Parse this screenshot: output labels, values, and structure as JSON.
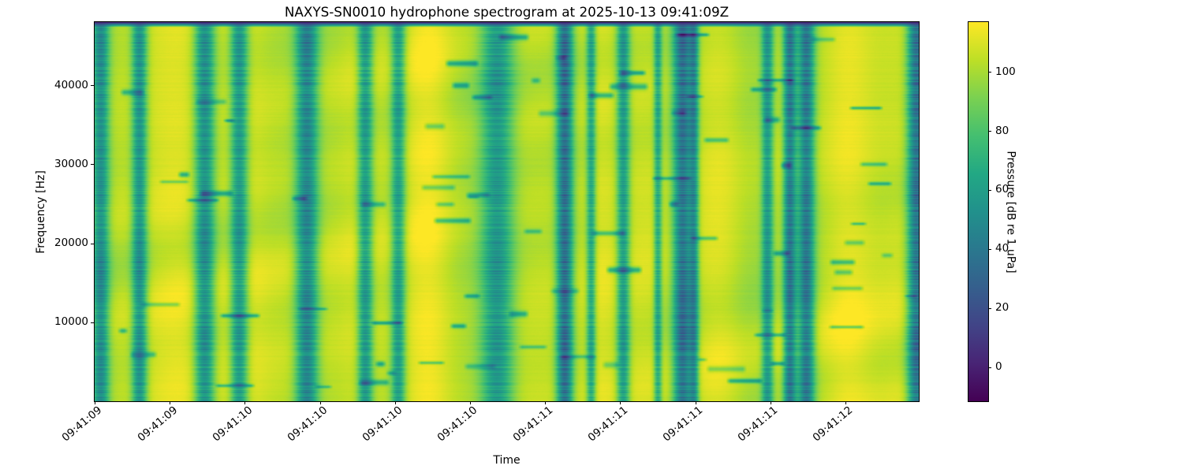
{
  "figure": {
    "title": "NAXYS-SN0010 hydrophone spectrogram at 2025-10-13 09:41:09Z",
    "background_color": "#ffffff"
  },
  "axes": {
    "xlabel": "Time",
    "ylabel": "Frequency [Hz]",
    "x_tick_labels": [
      "09:41:09",
      "09:41:09",
      "09:41:10",
      "09:41:10",
      "09:41:10",
      "09:41:10",
      "09:41:11",
      "09:41:11",
      "09:41:11",
      "09:41:11",
      "09:41:12"
    ],
    "y_tick_values": [
      10000,
      20000,
      30000,
      40000
    ]
  },
  "colorbar": {
    "label": "Pressure [dB re 1 uPa]",
    "ticks": [
      0,
      20,
      40,
      60,
      80,
      100
    ],
    "vmin": -11.5,
    "vmax": 116.8,
    "colormap": "viridis",
    "stops": [
      [
        0,
        "#440154"
      ],
      [
        0.1,
        "#482475"
      ],
      [
        0.2,
        "#414487"
      ],
      [
        0.3,
        "#355f8d"
      ],
      [
        0.4,
        "#2a788e"
      ],
      [
        0.5,
        "#21918c"
      ],
      [
        0.6,
        "#22a884"
      ],
      [
        0.7,
        "#44bf70"
      ],
      [
        0.8,
        "#7ad151"
      ],
      [
        0.9,
        "#bddf26"
      ],
      [
        1,
        "#fde725"
      ]
    ]
  },
  "chart_data": {
    "type": "heatmap",
    "subtype": "hydrophone-spectrogram",
    "title": "NAXYS-SN0010 hydrophone spectrogram at 2025-10-13 09:41:09Z",
    "xlabel": "Time",
    "ylabel": "Frequency [Hz]",
    "x_tick_labels": [
      "09:41:09",
      "09:41:09",
      "09:41:10",
      "09:41:10",
      "09:41:10",
      "09:41:10",
      "09:41:11",
      "09:41:11",
      "09:41:11",
      "09:41:11",
      "09:41:12"
    ],
    "y_tick_values": [
      10000,
      20000,
      30000,
      40000
    ],
    "freq_range_hz": [
      0,
      48000
    ],
    "time_start": "09:41:09",
    "time_end": "09:41:12",
    "colormap": "viridis",
    "pressure_range_db": [
      -11.5,
      116.8
    ],
    "colorbar_label": "Pressure [dB re 1 uPa]",
    "colorbar_ticks": [
      0,
      20,
      40,
      60,
      80,
      100
    ],
    "background_level_db": 103.5,
    "vertical_gradient_db": 3,
    "quiet_bands": [
      {
        "t": 0.007,
        "w": 0.014,
        "depth": 50
      },
      {
        "t": 0.054,
        "w": 0.013,
        "depth": 52
      },
      {
        "t": 0.133,
        "w": 0.017,
        "depth": 54
      },
      {
        "t": 0.175,
        "w": 0.015,
        "depth": 52
      },
      {
        "t": 0.257,
        "w": 0.019,
        "depth": 58
      },
      {
        "t": 0.328,
        "w": 0.013,
        "depth": 50
      },
      {
        "t": 0.368,
        "w": 0.012,
        "depth": 44
      },
      {
        "t": 0.488,
        "w": 0.028,
        "depth": 50
      },
      {
        "t": 0.57,
        "w": 0.014,
        "depth": 70
      },
      {
        "t": 0.602,
        "w": 0.008,
        "depth": 42
      },
      {
        "t": 0.641,
        "w": 0.011,
        "depth": 48
      },
      {
        "t": 0.683,
        "w": 0.007,
        "depth": 40
      },
      {
        "t": 0.713,
        "w": 0.016,
        "depth": 66
      },
      {
        "t": 0.727,
        "w": 0.008,
        "depth": 45
      },
      {
        "t": 0.816,
        "w": 0.01,
        "depth": 46
      },
      {
        "t": 0.843,
        "w": 0.011,
        "depth": 64
      },
      {
        "t": 0.863,
        "w": 0.014,
        "depth": 62
      },
      {
        "t": 0.997,
        "w": 0.016,
        "depth": 68
      }
    ],
    "bright_patches": [
      {
        "t": 0.09,
        "w": 0.05,
        "amp": 5
      },
      {
        "t": 0.21,
        "w": 0.04,
        "amp": 6
      },
      {
        "t": 0.3,
        "w": 0.04,
        "amp": 5
      },
      {
        "t": 0.4,
        "w": 0.035,
        "amp": 6
      },
      {
        "t": 0.53,
        "w": 0.05,
        "amp": 5
      },
      {
        "t": 0.615,
        "w": 0.02,
        "amp": 5
      },
      {
        "t": 0.77,
        "w": 0.04,
        "amp": 6
      },
      {
        "t": 0.92,
        "w": 0.045,
        "amp": 6
      }
    ],
    "texture": {
      "seed": 11,
      "blob_amp": 6,
      "col_amp": 4,
      "row_noise": 1.1,
      "streak_count": 80,
      "streak_depth": [
        20,
        42
      ],
      "top_edge_rows": 6,
      "top_edge_level_db": 3
    }
  }
}
